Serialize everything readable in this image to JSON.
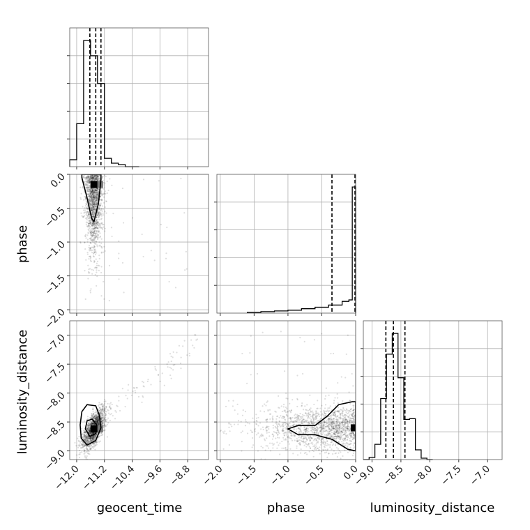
{
  "chart_data": {
    "type": "scatter",
    "subtype": "corner-plot",
    "grid": true,
    "parameters": [
      {
        "name": "geocent_time",
        "label": "geocent_time",
        "range": [
          -12.2,
          -8.2
        ],
        "ticks": [
          "-12.0",
          "-11.2",
          "-10.4",
          "-9.6",
          "-8.8"
        ],
        "tick_values": [
          -12.0,
          -11.2,
          -10.4,
          -9.6,
          -8.8
        ]
      },
      {
        "name": "phase",
        "label": "phase",
        "range": [
          -2.05,
          0.0
        ],
        "ticks": [
          "-2.0",
          "-1.5",
          "-1.0",
          "-0.5",
          "0.0"
        ],
        "tick_values": [
          -2.0,
          -1.5,
          -1.0,
          -0.5,
          0.0
        ]
      },
      {
        "name": "luminosity_distance",
        "label": "luminosity_distance",
        "range": [
          -9.15,
          -6.75
        ],
        "ticks": [
          "-9.0",
          "-8.5",
          "-8.0",
          "-7.5",
          "-7.0"
        ],
        "tick_values": [
          -9.0,
          -8.5,
          -8.0,
          -7.5,
          -7.0
        ]
      }
    ],
    "histograms": [
      {
        "parameter": "geocent_time",
        "bin_edges": [
          -12.2,
          -12.0,
          -11.8,
          -11.6,
          -11.4,
          -11.2,
          -11.0,
          -10.8,
          -10.6,
          -10.4,
          -10.2
        ],
        "counts": [
          10,
          62,
          182,
          160,
          120,
          12,
          5,
          3,
          0,
          0
        ],
        "quantiles": [
          -11.62,
          -11.45,
          -11.3
        ]
      },
      {
        "parameter": "phase",
        "bin_edges": [
          -1.6,
          -1.4,
          -1.2,
          -1.0,
          -0.8,
          -0.6,
          -0.4,
          -0.2,
          -0.1,
          -0.05,
          0.0
        ],
        "counts": [
          1,
          2,
          3,
          4,
          6,
          8,
          11,
          16,
          18,
          172
        ],
        "quantiles": [
          -0.35,
          -0.01
        ]
      },
      {
        "parameter": "luminosity_distance",
        "bin_edges": [
          -9.15,
          -9.05,
          -8.95,
          -8.85,
          -8.75,
          -8.65,
          -8.55,
          -8.45,
          -8.35,
          -8.25,
          -8.15,
          -8.05,
          -7.95
        ],
        "counts": [
          0,
          3,
          22,
          88,
          152,
          182,
          118,
          58,
          59,
          14,
          2,
          0
        ],
        "quantiles": [
          -8.76,
          -8.63,
          -8.43
        ]
      }
    ],
    "scatter_panels": [
      {
        "x": "geocent_time",
        "y": "phase",
        "center": [
          -11.5,
          -0.15
        ],
        "contours": [
          [
            [
              -11.85,
              -0.05
            ],
            [
              -11.7,
              -0.35
            ],
            [
              -11.57,
              -0.65
            ],
            [
              -11.5,
              -0.7
            ],
            [
              -11.37,
              -0.42
            ],
            [
              -11.3,
              -0.08
            ],
            [
              -11.3,
              0.0
            ],
            [
              -11.85,
              0.0
            ]
          ]
        ]
      },
      {
        "x": "geocent_time",
        "y": "luminosity_distance",
        "center": [
          -11.5,
          -8.62
        ],
        "contours": [
          [
            [
              -11.9,
              -8.55
            ],
            [
              -11.85,
              -8.32
            ],
            [
              -11.7,
              -8.2
            ],
            [
              -11.45,
              -8.22
            ],
            [
              -11.35,
              -8.38
            ],
            [
              -11.3,
              -8.6
            ],
            [
              -11.45,
              -8.82
            ],
            [
              -11.7,
              -8.9
            ],
            [
              -11.87,
              -8.78
            ]
          ],
          [
            [
              -11.75,
              -8.62
            ],
            [
              -11.7,
              -8.48
            ],
            [
              -11.55,
              -8.45
            ],
            [
              -11.42,
              -8.55
            ],
            [
              -11.45,
              -8.7
            ],
            [
              -11.62,
              -8.75
            ]
          ]
        ]
      },
      {
        "x": "phase",
        "y": "luminosity_distance",
        "center": [
          -0.02,
          -8.6
        ],
        "contours": [
          [
            [
              -1.0,
              -8.62
            ],
            [
              -0.85,
              -8.56
            ],
            [
              -0.6,
              -8.56
            ],
            [
              -0.42,
              -8.4
            ],
            [
              -0.25,
              -8.2
            ],
            [
              -0.05,
              -8.15
            ],
            [
              0.0,
              -8.15
            ],
            [
              0.0,
              -9.0
            ],
            [
              -0.12,
              -8.97
            ],
            [
              -0.35,
              -8.8
            ],
            [
              -0.6,
              -8.72
            ],
            [
              -0.85,
              -8.72
            ]
          ]
        ]
      }
    ]
  }
}
